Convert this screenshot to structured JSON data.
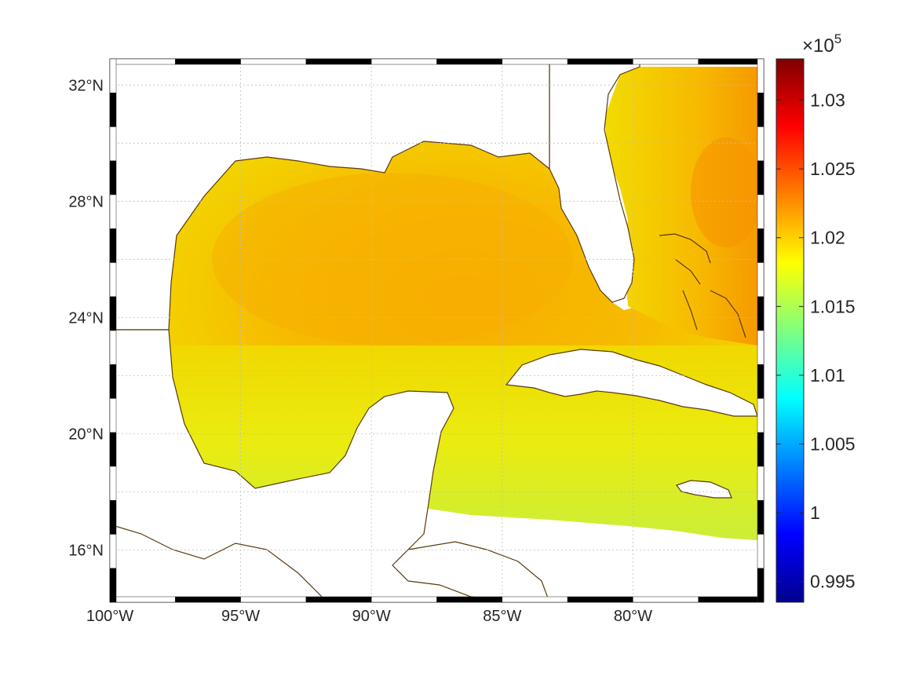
{
  "map": {
    "lon_ticks": [
      "100°W",
      "95°W",
      "90°W",
      "85°W",
      "80°W"
    ],
    "lat_ticks": [
      "32°N",
      "28°N",
      "24°N",
      "20°N",
      "16°N"
    ],
    "lon_values": [
      -100,
      -95,
      -90,
      -85,
      -80
    ],
    "lat_values": [
      32,
      28,
      24,
      20,
      16
    ],
    "lon_range": [
      -100,
      -75
    ],
    "lat_range": [
      14.2,
      32.9
    ],
    "grid": "on",
    "coast_color": "#5a3a10",
    "field_colors": {
      "deep_orange": "#f7ae00",
      "mid_orange": "#f7c300",
      "yellow": "#eeea10",
      "yellow_green": "#c8ee3a",
      "orange_red": "#f69400"
    }
  },
  "colorbar": {
    "multiplier_base": "×10",
    "multiplier_exp": "5",
    "ticks": [
      "1.03",
      "1.025",
      "1.02",
      "1.015",
      "1.01",
      "1.005",
      "1",
      "0.995"
    ],
    "tick_values": [
      1.03,
      1.025,
      1.02,
      1.015,
      1.01,
      1.005,
      1.0,
      0.995
    ],
    "range": [
      0.9935,
      1.033
    ],
    "colormap": "jet"
  }
}
